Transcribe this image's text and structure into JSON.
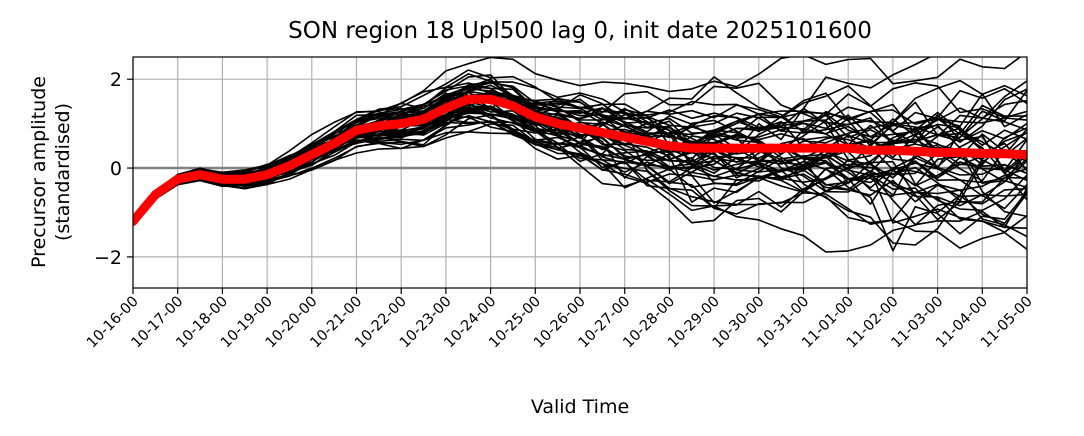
{
  "chart_data": {
    "type": "line",
    "title": "SON region 18 Upl500 lag 0, init date 2025101600",
    "xlabel": "Valid Time",
    "ylabel_lines": [
      "Precursor amplitude",
      "(standardised)"
    ],
    "x_tick_labels": [
      "10-16-00",
      "10-17-00",
      "10-18-00",
      "10-19-00",
      "10-20-00",
      "10-21-00",
      "10-22-00",
      "10-23-00",
      "10-24-00",
      "10-25-00",
      "10-26-00",
      "10-27-00",
      "10-28-00",
      "10-29-00",
      "10-30-00",
      "10-31-00",
      "11-01-00",
      "11-02-00",
      "11-03-00",
      "11-04-00",
      "11-05-00"
    ],
    "xlim_days": [
      0,
      20
    ],
    "ylim": [
      -2.7,
      2.5
    ],
    "y_ticks": [
      -2,
      0,
      2
    ],
    "y_tick_labels": [
      "−2",
      "0",
      "2"
    ],
    "grid": true,
    "zero_line_color": "#808080",
    "series": [
      {
        "role": "ensemble mean",
        "color": "#ff0000",
        "x_days": [
          0,
          0.5,
          1,
          1.5,
          2,
          2.5,
          3,
          3.5,
          4,
          4.5,
          5,
          5.5,
          6,
          6.5,
          7,
          7.5,
          8,
          8.5,
          9,
          9.5,
          10,
          10.5,
          11,
          11.5,
          12,
          12.5,
          13,
          13.5,
          14,
          14.5,
          15,
          15.5,
          16,
          16.5,
          17,
          17.5,
          18,
          18.5,
          19,
          19.5,
          20
        ],
        "values": [
          -1.2,
          -0.6,
          -0.25,
          -0.15,
          -0.25,
          -0.25,
          -0.15,
          0.05,
          0.3,
          0.55,
          0.85,
          0.95,
          1.0,
          1.1,
          1.35,
          1.55,
          1.55,
          1.4,
          1.15,
          1.0,
          0.9,
          0.8,
          0.7,
          0.6,
          0.5,
          0.45,
          0.45,
          0.45,
          0.45,
          0.45,
          0.45,
          0.45,
          0.45,
          0.4,
          0.4,
          0.38,
          0.35,
          0.35,
          0.33,
          0.32,
          0.3
        ]
      }
    ],
    "ensemble": {
      "member_count": 51,
      "color": "#000000"
    }
  }
}
